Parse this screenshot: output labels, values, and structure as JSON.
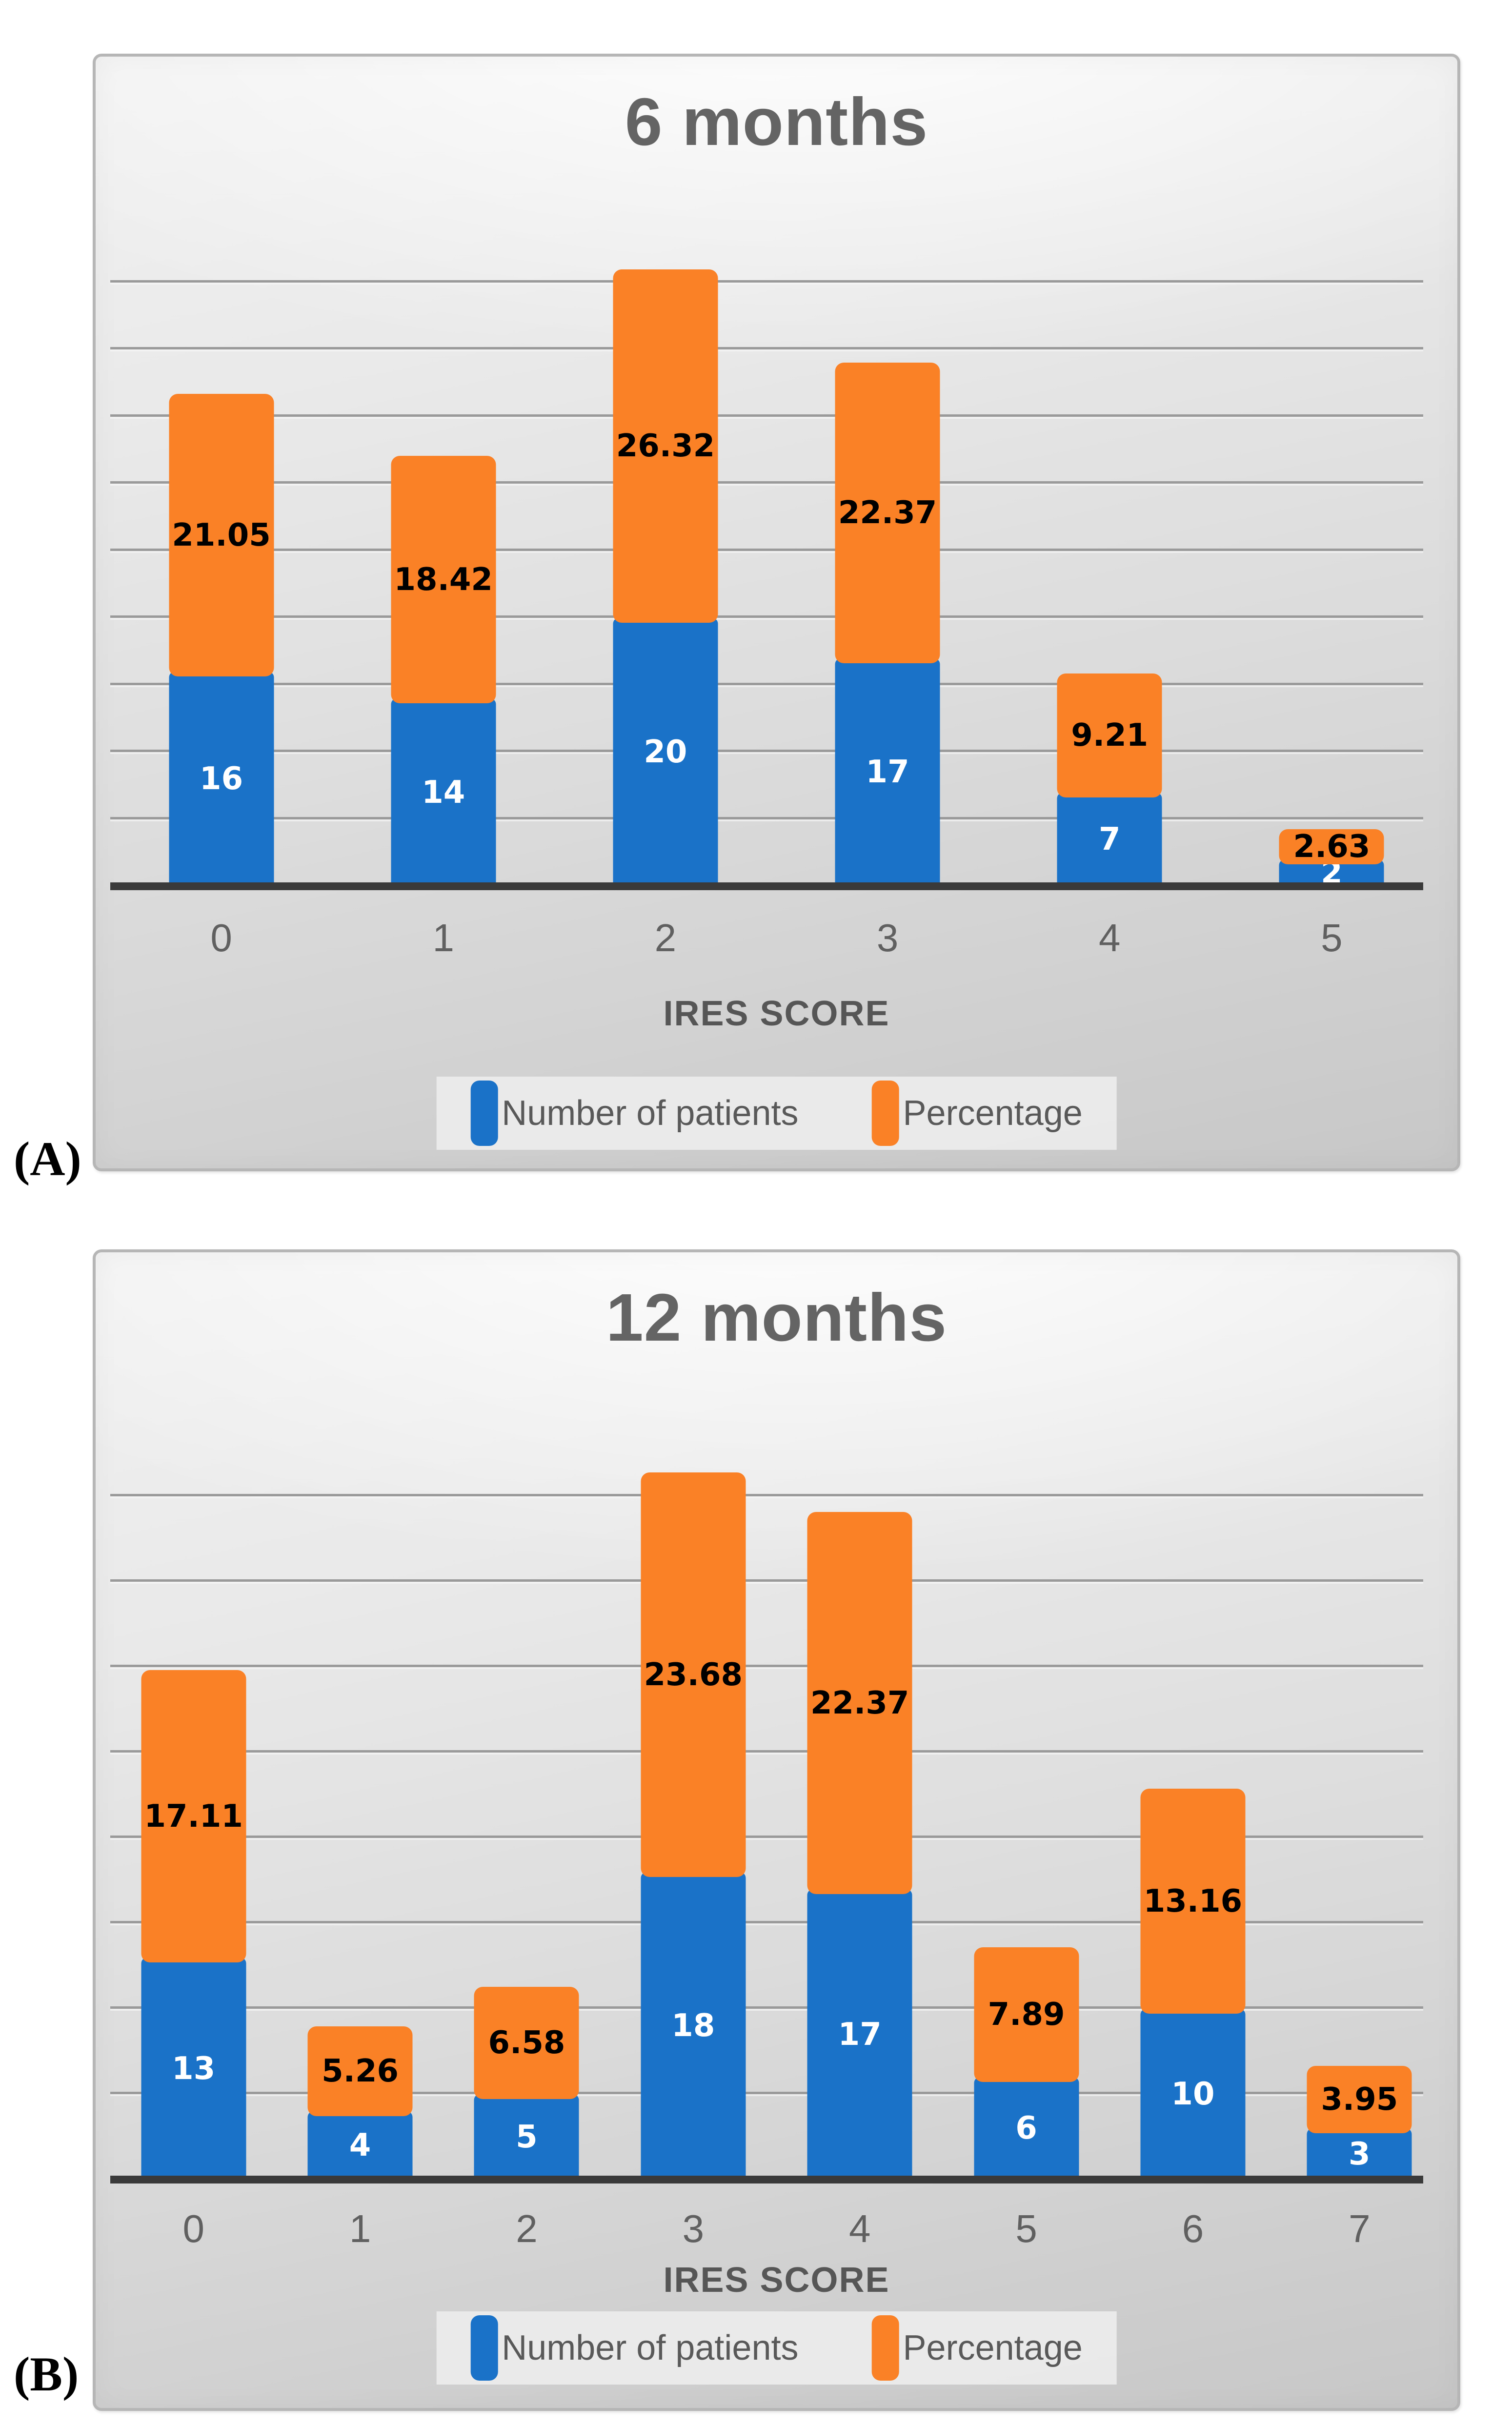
{
  "page": {
    "background": "#ffffff"
  },
  "panel_labels": {
    "a": "(A)",
    "b": "(B)"
  },
  "colors": {
    "patients_blue": "#1A72C8",
    "percentage_orange": "#FA8126",
    "axis_line": "#3A3A3A",
    "gridline": "#9A9A9A",
    "text_gray": "#595959"
  },
  "chart_data": [
    {
      "type": "bar",
      "stacked": true,
      "title": "6 months",
      "xlabel": "IRES SCORE",
      "ylabel": "",
      "categories": [
        "0",
        "1",
        "2",
        "3",
        "4",
        "5"
      ],
      "series": [
        {
          "name": "Number of patients",
          "color": "#1A72C8",
          "values": [
            16,
            14,
            20,
            17,
            7,
            2
          ]
        },
        {
          "name": "Percentage",
          "color": "#FA8126",
          "values": [
            21.05,
            18.42,
            26.32,
            22.37,
            9.21,
            2.63
          ]
        }
      ],
      "ylim": [
        0,
        50
      ],
      "grid": "horizontal",
      "y_axis_labels": false,
      "legend_position": "bottom"
    },
    {
      "type": "bar",
      "stacked": true,
      "title": "12 months",
      "xlabel": "IRES SCORE",
      "ylabel": "",
      "categories": [
        "0",
        "1",
        "2",
        "3",
        "4",
        "5",
        "6",
        "7"
      ],
      "series": [
        {
          "name": "Number of patients",
          "color": "#1A72C8",
          "values": [
            13,
            4,
            5,
            18,
            17,
            6,
            10,
            3
          ]
        },
        {
          "name": "Percentage",
          "color": "#FA8126",
          "values": [
            17.11,
            5.26,
            6.58,
            23.68,
            22.37,
            7.89,
            13.16,
            3.95
          ]
        }
      ],
      "ylim": [
        0,
        45
      ],
      "grid": "horizontal",
      "y_axis_labels": false,
      "legend_position": "bottom"
    }
  ]
}
